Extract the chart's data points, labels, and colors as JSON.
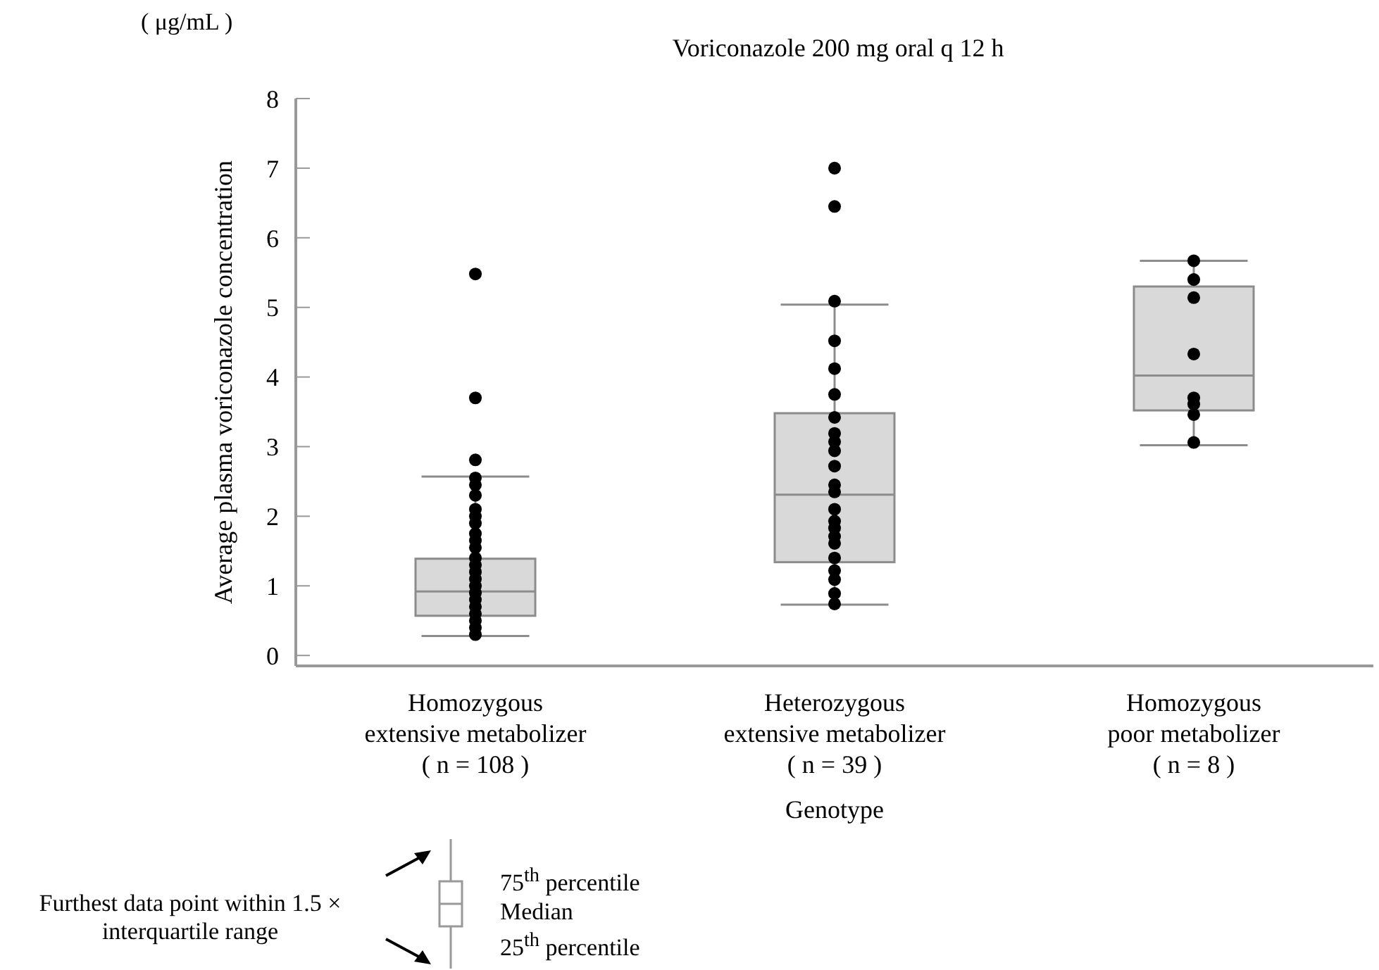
{
  "chart_data": {
    "type": "box",
    "title": "Voriconazole 200 mg oral q 12 h",
    "xlabel": "Genotype",
    "ylabel": "Average plasma voriconazole concentration",
    "categories": [
      "Homozygous\nextensive metabolizer\n( n = 108 )",
      "Heterozygous\nextensive metabolizer\n( n = 39 )",
      "Homozygous\npoor metabolizer\n( n = 8 )"
    ],
    "ylim": [
      -0.15,
      8
    ],
    "yticks": [
      0,
      1,
      2,
      3,
      4,
      5,
      6,
      7,
      8
    ],
    "marker": "circle",
    "series": [
      {
        "color": "#d9d9d9",
        "boxes": [
          {
            "low": 0.28,
            "q1": 0.57,
            "median": 0.92,
            "q3": 1.39,
            "high": 2.57
          },
          {
            "low": 0.73,
            "q1": 1.34,
            "median": 2.31,
            "q3": 3.48,
            "high": 5.04
          },
          {
            "low": 3.02,
            "q1": 3.52,
            "median": 4.02,
            "q3": 5.3,
            "high": 5.67
          }
        ]
      },
      {
        "type": "scatter",
        "color": "#000000",
        "x": [
          "Homozygous\nextensive metabolizer\n( n = 108 )",
          "Homozygous\nextensive metabolizer\n( n = 108 )",
          "Homozygous\nextensive metabolizer\n( n = 108 )",
          "Homozygous\nextensive metabolizer\n( n = 108 )",
          "Homozygous\nextensive metabolizer\n( n = 108 )",
          "Homozygous\nextensive metabolizer\n( n = 108 )",
          "Homozygous\nextensive metabolizer\n( n = 108 )",
          "Homozygous\nextensive metabolizer\n( n = 108 )",
          "Homozygous\nextensive metabolizer\n( n = 108 )",
          "Homozygous\nextensive metabolizer\n( n = 108 )",
          "Homozygous\nextensive metabolizer\n( n = 108 )",
          "Homozygous\nextensive metabolizer\n( n = 108 )",
          "Homozygous\nextensive metabolizer\n( n = 108 )",
          "Homozygous\nextensive metabolizer\n( n = 108 )",
          "Homozygous\nextensive metabolizer\n( n = 108 )",
          "Homozygous\nextensive metabolizer\n( n = 108 )",
          "Homozygous\nextensive metabolizer\n( n = 108 )",
          "Homozygous\nextensive metabolizer\n( n = 108 )",
          "Homozygous\nextensive metabolizer\n( n = 108 )",
          "Homozygous\nextensive metabolizer\n( n = 108 )",
          "Homozygous\nextensive metabolizer\n( n = 108 )",
          "Homozygous\nextensive metabolizer\n( n = 108 )",
          "Homozygous\nextensive metabolizer\n( n = 108 )",
          "Homozygous\nextensive metabolizer\n( n = 108 )",
          "Heterozygous\nextensive metabolizer\n( n = 39 )",
          "Heterozygous\nextensive metabolizer\n( n = 39 )",
          "Heterozygous\nextensive metabolizer\n( n = 39 )",
          "Heterozygous\nextensive metabolizer\n( n = 39 )",
          "Heterozygous\nextensive metabolizer\n( n = 39 )",
          "Heterozygous\nextensive metabolizer\n( n = 39 )",
          "Heterozygous\nextensive metabolizer\n( n = 39 )",
          "Heterozygous\nextensive metabolizer\n( n = 39 )",
          "Heterozygous\nextensive metabolizer\n( n = 39 )",
          "Heterozygous\nextensive metabolizer\n( n = 39 )",
          "Heterozygous\nextensive metabolizer\n( n = 39 )",
          "Heterozygous\nextensive metabolizer\n( n = 39 )",
          "Heterozygous\nextensive metabolizer\n( n = 39 )",
          "Heterozygous\nextensive metabolizer\n( n = 39 )",
          "Heterozygous\nextensive metabolizer\n( n = 39 )",
          "Heterozygous\nextensive metabolizer\n( n = 39 )",
          "Heterozygous\nextensive metabolizer\n( n = 39 )",
          "Heterozygous\nextensive metabolizer\n( n = 39 )",
          "Heterozygous\nextensive metabolizer\n( n = 39 )",
          "Heterozygous\nextensive metabolizer\n( n = 39 )",
          "Heterozygous\nextensive metabolizer\n( n = 39 )",
          "Heterozygous\nextensive metabolizer\n( n = 39 )",
          "Heterozygous\nextensive metabolizer\n( n = 39 )",
          "Homozygous\npoor metabolizer\n( n = 8 )",
          "Homozygous\npoor metabolizer\n( n = 8 )",
          "Homozygous\npoor metabolizer\n( n = 8 )",
          "Homozygous\npoor metabolizer\n( n = 8 )",
          "Homozygous\npoor metabolizer\n( n = 8 )",
          "Homozygous\npoor metabolizer\n( n = 8 )",
          "Homozygous\npoor metabolizer\n( n = 8 )",
          "Homozygous\npoor metabolizer\n( n = 8 )"
        ],
        "values": [
          5.48,
          3.7,
          2.81,
          2.55,
          2.45,
          2.3,
          2.1,
          2.0,
          1.9,
          1.75,
          1.65,
          1.55,
          1.4,
          1.3,
          1.2,
          1.1,
          1.0,
          0.9,
          0.8,
          0.7,
          0.6,
          0.5,
          0.4,
          0.3,
          7.0,
          6.45,
          5.09,
          4.52,
          4.12,
          3.75,
          3.42,
          3.19,
          3.07,
          2.94,
          2.72,
          2.45,
          2.35,
          2.1,
          1.93,
          1.83,
          1.71,
          1.61,
          1.4,
          1.22,
          1.09,
          0.89,
          0.74,
          5.67,
          5.4,
          5.14,
          4.33,
          3.7,
          3.61,
          3.46,
          3.06
        ]
      }
    ],
    "annotations": [
      "( μg/mL )",
      "Furthest data point within 1.5 × interquartile range",
      "75$^{th}$ percentile",
      "Median",
      "25$^{th}$ percentile"
    ]
  }
}
